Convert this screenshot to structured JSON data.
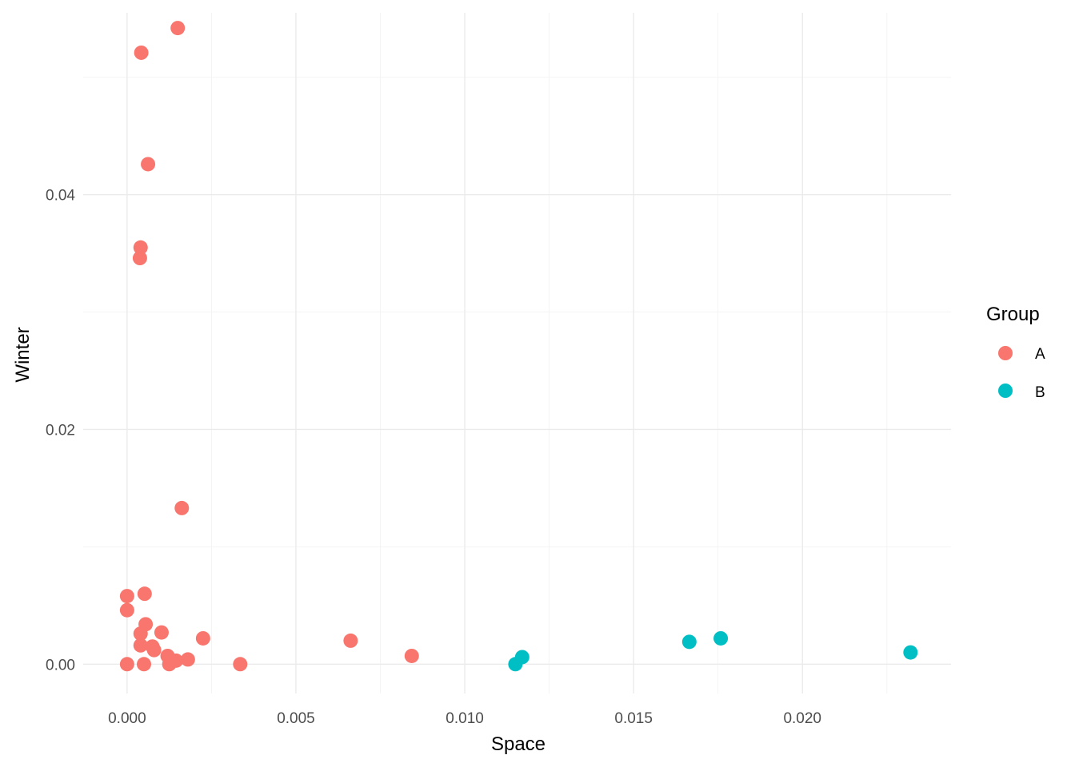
{
  "chart_data": {
    "type": "scatter",
    "xlabel": "Space",
    "ylabel": "Winter",
    "xlim": [
      -0.0013,
      0.0244
    ],
    "ylim": [
      -0.0025,
      0.0555
    ],
    "x_ticks": [
      0.0,
      0.005,
      0.01,
      0.015,
      0.02
    ],
    "x_tick_labels": [
      "0.000",
      "0.005",
      "0.010",
      "0.015",
      "0.020"
    ],
    "y_ticks": [
      0.0,
      0.02,
      0.04
    ],
    "y_tick_labels": [
      "0.00",
      "0.02",
      "0.04"
    ],
    "grid": true,
    "legend": {
      "title": "Group",
      "position": "right",
      "entries": [
        {
          "label": "A",
          "color": "#F8766D"
        },
        {
          "label": "B",
          "color": "#00BFC4"
        }
      ]
    },
    "series": [
      {
        "name": "A",
        "color": "#F8766D",
        "points": [
          [
            0.0015,
            0.0542
          ],
          [
            0.00042,
            0.0521
          ],
          [
            0.00062,
            0.0426
          ],
          [
            0.0004,
            0.0355
          ],
          [
            0.00038,
            0.0346
          ],
          [
            0.00162,
            0.0133
          ],
          [
            0.0,
            0.0058
          ],
          [
            0.00052,
            0.006
          ],
          [
            0.0,
            0.0046
          ],
          [
            0.00055,
            0.0034
          ],
          [
            0.0004,
            0.0026
          ],
          [
            0.00102,
            0.0027
          ],
          [
            0.0004,
            0.0016
          ],
          [
            0.00075,
            0.0015
          ],
          [
            0.0008,
            0.0012
          ],
          [
            0.00225,
            0.0022
          ],
          [
            0.0012,
            0.0007
          ],
          [
            0.00145,
            0.0003
          ],
          [
            0.0018,
            0.0004
          ],
          [
            0.00125,
            0.0
          ],
          [
            0.0,
            0.0
          ],
          [
            0.0005,
            0.0
          ],
          [
            0.00335,
            0.0
          ],
          [
            0.00662,
            0.002
          ],
          [
            0.00843,
            0.0007
          ]
        ]
      },
      {
        "name": "B",
        "color": "#00BFC4",
        "points": [
          [
            0.0115,
            0.0
          ],
          [
            0.0117,
            0.0006
          ],
          [
            0.01665,
            0.0019
          ],
          [
            0.01758,
            0.0022
          ],
          [
            0.0232,
            0.001
          ]
        ]
      }
    ]
  }
}
